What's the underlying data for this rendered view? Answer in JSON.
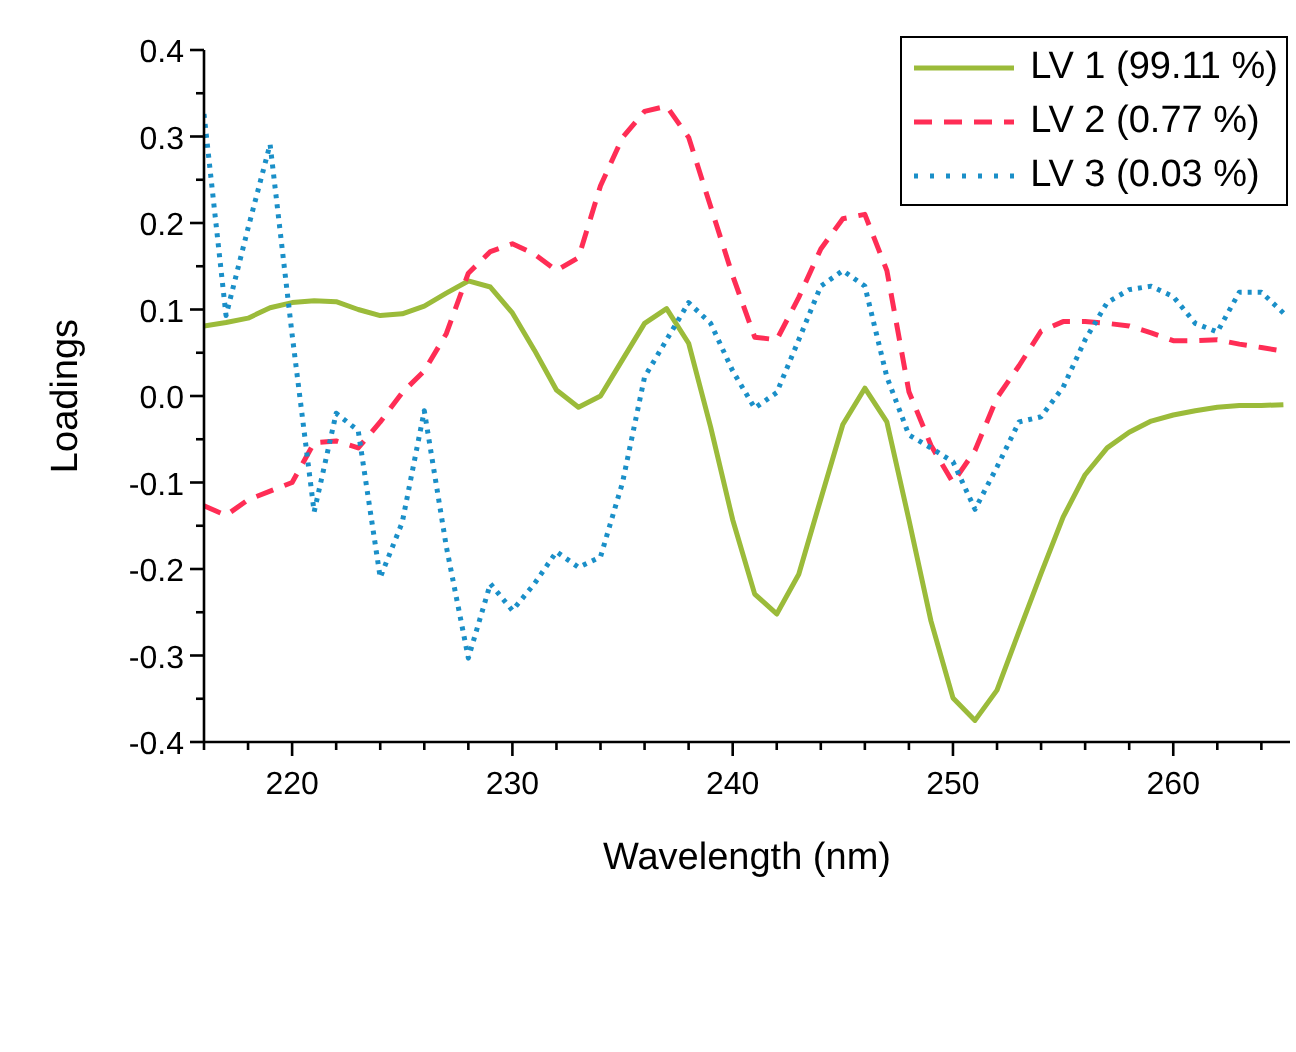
{
  "chart_data": {
    "type": "line",
    "xlabel": "Wavelength (nm)",
    "ylabel": "Loadings",
    "x": [
      216,
      217,
      218,
      219,
      220,
      221,
      222,
      223,
      224,
      225,
      226,
      227,
      228,
      229,
      230,
      231,
      232,
      233,
      234,
      235,
      236,
      237,
      238,
      239,
      240,
      241,
      242,
      243,
      244,
      245,
      246,
      247,
      248,
      249,
      250,
      251,
      252,
      253,
      254,
      255,
      256,
      257,
      258,
      259,
      260,
      261,
      262,
      263,
      264,
      265
    ],
    "series": [
      {
        "name": "LV 1 (99.11 %)",
        "color": "#9bbb3a",
        "line_style": "solid",
        "values": [
          0.081,
          0.085,
          0.09,
          0.102,
          0.108,
          0.11,
          0.109,
          0.1,
          0.093,
          0.095,
          0.104,
          0.119,
          0.133,
          0.126,
          0.096,
          0.053,
          0.007,
          -0.013,
          0.0,
          0.042,
          0.084,
          0.101,
          0.061,
          -0.036,
          -0.143,
          -0.229,
          -0.252,
          -0.206,
          -0.119,
          -0.033,
          0.009,
          -0.03,
          -0.143,
          -0.26,
          -0.349,
          -0.375,
          -0.34,
          -0.272,
          -0.205,
          -0.14,
          -0.091,
          -0.06,
          -0.042,
          -0.029,
          -0.022,
          -0.017,
          -0.013,
          -0.011,
          -0.011,
          -0.01
        ]
      },
      {
        "name": "LV 2 (0.77 %)",
        "color": "#ff2d55",
        "line_style": "dashed",
        "values": [
          -0.127,
          -0.138,
          -0.12,
          -0.11,
          -0.1,
          -0.054,
          -0.052,
          -0.06,
          -0.03,
          0.004,
          0.029,
          0.072,
          0.142,
          0.167,
          0.176,
          0.164,
          0.145,
          0.16,
          0.243,
          0.299,
          0.329,
          0.335,
          0.299,
          0.219,
          0.139,
          0.068,
          0.065,
          0.114,
          0.17,
          0.205,
          0.21,
          0.145,
          0.005,
          -0.057,
          -0.1,
          -0.063,
          -0.002,
          0.035,
          0.075,
          0.086,
          0.086,
          0.084,
          0.081,
          0.073,
          0.064,
          0.064,
          0.065,
          0.06,
          0.056,
          0.052
        ]
      },
      {
        "name": "LV 3 (0.03 %)",
        "color": "#1a8fc8",
        "line_style": "dotted",
        "values": [
          0.326,
          0.093,
          0.194,
          0.291,
          0.071,
          -0.134,
          -0.02,
          -0.04,
          -0.21,
          -0.146,
          -0.017,
          -0.174,
          -0.303,
          -0.217,
          -0.248,
          -0.217,
          -0.18,
          -0.198,
          -0.186,
          -0.1,
          0.022,
          0.065,
          0.108,
          0.084,
          0.029,
          -0.014,
          0.004,
          0.065,
          0.127,
          0.145,
          0.127,
          0.022,
          -0.045,
          -0.06,
          -0.076,
          -0.131,
          -0.082,
          -0.03,
          -0.024,
          0.01,
          0.065,
          0.108,
          0.123,
          0.127,
          0.115,
          0.084,
          0.074,
          0.12,
          0.12,
          0.096
        ]
      }
    ],
    "xlim": [
      216,
      265.3
    ],
    "xticks": [
      {
        "value": 216,
        "label": null
      },
      {
        "value": 218,
        "label": null
      },
      220,
      {
        "value": 222,
        "label": null
      },
      {
        "value": 224,
        "label": null
      },
      {
        "value": 226,
        "label": null
      },
      {
        "value": 228,
        "label": null
      },
      230,
      {
        "value": 232,
        "label": null
      },
      {
        "value": 234,
        "label": null
      },
      {
        "value": 236,
        "label": null
      },
      {
        "value": 238,
        "label": null
      },
      240,
      {
        "value": 242,
        "label": null
      },
      {
        "value": 244,
        "label": null
      },
      {
        "value": 246,
        "label": null
      },
      {
        "value": 248,
        "label": null
      },
      250,
      {
        "value": 252,
        "label": null
      },
      {
        "value": 254,
        "label": null
      },
      {
        "value": 256,
        "label": null
      },
      {
        "value": 258,
        "label": null
      },
      260,
      {
        "value": 262,
        "label": null
      },
      {
        "value": 264,
        "label": null
      }
    ],
    "ylim": [
      -0.4,
      0.4
    ],
    "yticks": [
      -0.4,
      {
        "value": -0.35,
        "label": null
      },
      -0.3,
      {
        "value": -0.25,
        "label": null
      },
      -0.2,
      {
        "value": -0.15,
        "label": null
      },
      -0.1,
      {
        "value": -0.05,
        "label": null
      },
      {
        "value": 0,
        "label": "0.0"
      },
      {
        "value": 0.05,
        "label": null
      },
      0.1,
      {
        "value": 0.15,
        "label": null
      },
      0.2,
      {
        "value": 0.25,
        "label": null
      },
      0.3,
      {
        "value": 0.35,
        "label": null
      },
      0.4
    ],
    "grid": false,
    "legend": "top right",
    "marker": "none"
  }
}
